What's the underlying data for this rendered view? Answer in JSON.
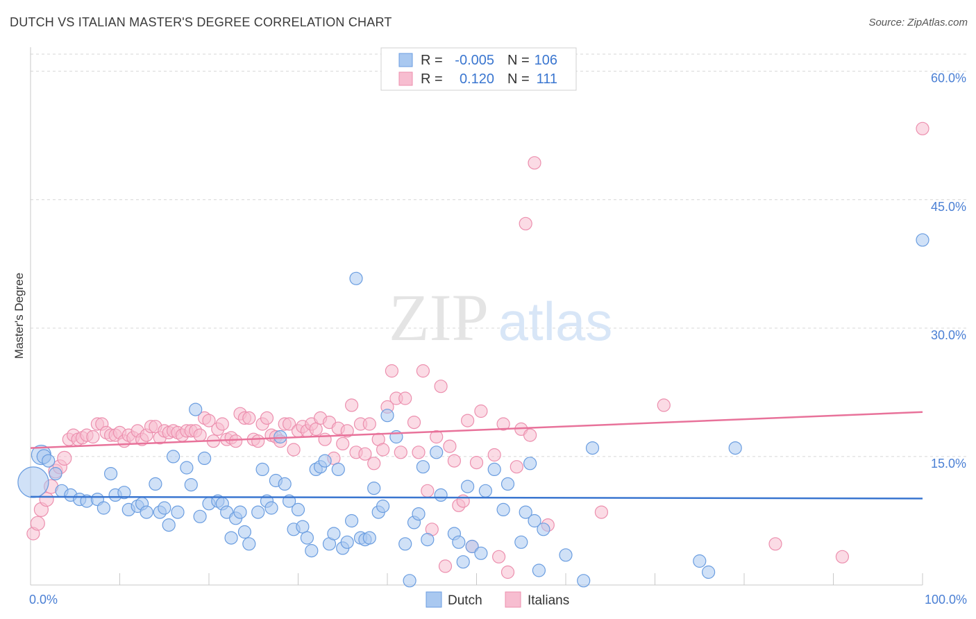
{
  "header": {
    "title": "DUTCH VS ITALIAN MASTER'S DEGREE CORRELATION CHART",
    "source": "Source: ZipAtlas.com"
  },
  "watermark": {
    "zip": "ZIP",
    "atlas": "atlas"
  },
  "colors": {
    "dutch_fill": "#a9c8f0",
    "dutch_stroke": "#6a9de0",
    "dutch_line": "#3a76d0",
    "italian_fill": "#f7bdd0",
    "italian_stroke": "#ec8fae",
    "italian_line": "#e8729a",
    "grid": "#d6d6d6",
    "axis_text": "#4a7fd4"
  },
  "legend": {
    "rows": [
      {
        "r_label": "R =",
        "r_value": "-0.005",
        "n_label": "N =",
        "n_value": "106"
      },
      {
        "r_label": "R =",
        "r_value": "0.120",
        "n_label": "N =",
        "n_value": "111"
      }
    ]
  },
  "chart_data": {
    "type": "scatter",
    "title": "DUTCH VS ITALIAN MASTER'S DEGREE CORRELATION CHART",
    "xlabel": "",
    "ylabel": "Master's Degree",
    "xlim": [
      0,
      100
    ],
    "ylim": [
      0,
      62
    ],
    "x_tick_labels": [
      {
        "value": 0,
        "label": "0.0%"
      },
      {
        "value": 100,
        "label": "100.0%"
      }
    ],
    "y_ticks": [
      {
        "value": 15,
        "label": "15.0%"
      },
      {
        "value": 30,
        "label": "30.0%"
      },
      {
        "value": 45,
        "label": "45.0%"
      },
      {
        "value": 60,
        "label": "60.0%"
      }
    ],
    "grid": true,
    "legend_position": "bottom",
    "series": [
      {
        "name": "Dutch",
        "trend": {
          "x": [
            0,
            100
          ],
          "y": [
            10.3,
            10.1
          ]
        },
        "points": [
          [
            0.3,
            12.0,
            22
          ],
          [
            1.2,
            15.2,
            14
          ],
          [
            1.5,
            15.0,
            10
          ],
          [
            2.0,
            14.5,
            9
          ],
          [
            2.8,
            13.0,
            9
          ],
          [
            3.5,
            11.0,
            9
          ],
          [
            4.5,
            10.5,
            9
          ],
          [
            5.5,
            10.0,
            9
          ],
          [
            6.3,
            9.8,
            9
          ],
          [
            7.5,
            10.0,
            9
          ],
          [
            8.2,
            9.0,
            9
          ],
          [
            9.0,
            13.0,
            9
          ],
          [
            9.5,
            10.5,
            9
          ],
          [
            10.5,
            10.8,
            9
          ],
          [
            11.0,
            8.8,
            9
          ],
          [
            12.0,
            9.2,
            9
          ],
          [
            12.5,
            9.5,
            9
          ],
          [
            13.0,
            8.5,
            9
          ],
          [
            14.0,
            11.8,
            9
          ],
          [
            14.5,
            8.5,
            9
          ],
          [
            15.0,
            9.0,
            9
          ],
          [
            15.5,
            7.0,
            9
          ],
          [
            16.0,
            15.0,
            9
          ],
          [
            16.5,
            8.5,
            9
          ],
          [
            17.5,
            13.7,
            9
          ],
          [
            18.0,
            11.7,
            9
          ],
          [
            18.5,
            20.5,
            9
          ],
          [
            19.0,
            8.0,
            9
          ],
          [
            19.5,
            14.8,
            9
          ],
          [
            20.0,
            9.5,
            9
          ],
          [
            21.0,
            9.8,
            9
          ],
          [
            21.5,
            9.5,
            9
          ],
          [
            22.0,
            8.5,
            9
          ],
          [
            22.5,
            5.5,
            9
          ],
          [
            23.0,
            7.8,
            9
          ],
          [
            23.5,
            8.5,
            9
          ],
          [
            24.0,
            6.2,
            9
          ],
          [
            24.5,
            4.8,
            9
          ],
          [
            25.5,
            8.5,
            9
          ],
          [
            26.0,
            13.5,
            9
          ],
          [
            26.5,
            9.8,
            9
          ],
          [
            27.0,
            9.0,
            9
          ],
          [
            27.5,
            12.2,
            9
          ],
          [
            28.0,
            17.3,
            9
          ],
          [
            28.5,
            11.8,
            9
          ],
          [
            29.0,
            9.8,
            9
          ],
          [
            29.5,
            6.5,
            9
          ],
          [
            30.0,
            8.8,
            9
          ],
          [
            30.5,
            6.8,
            9
          ],
          [
            31.0,
            5.5,
            9
          ],
          [
            31.5,
            4.0,
            9
          ],
          [
            32.0,
            13.5,
            9
          ],
          [
            32.5,
            13.8,
            9
          ],
          [
            33.0,
            14.5,
            9
          ],
          [
            33.5,
            4.8,
            9
          ],
          [
            34.0,
            6.0,
            9
          ],
          [
            34.5,
            13.5,
            9
          ],
          [
            35.0,
            4.3,
            9
          ],
          [
            35.5,
            5.0,
            9
          ],
          [
            36.0,
            7.5,
            9
          ],
          [
            36.5,
            35.8,
            9
          ],
          [
            37.0,
            5.5,
            9
          ],
          [
            37.5,
            5.3,
            9
          ],
          [
            38.0,
            5.5,
            9
          ],
          [
            38.5,
            11.3,
            9
          ],
          [
            39.0,
            8.5,
            9
          ],
          [
            39.5,
            9.2,
            9
          ],
          [
            40.0,
            19.8,
            9
          ],
          [
            41.0,
            17.3,
            9
          ],
          [
            42.0,
            4.8,
            9
          ],
          [
            42.5,
            0.5,
            9
          ],
          [
            43.0,
            7.3,
            9
          ],
          [
            43.5,
            8.3,
            9
          ],
          [
            44.0,
            13.8,
            9
          ],
          [
            44.5,
            5.3,
            9
          ],
          [
            45.5,
            15.5,
            9
          ],
          [
            46.0,
            10.5,
            9
          ],
          [
            47.5,
            6.0,
            9
          ],
          [
            48.0,
            5.0,
            9
          ],
          [
            48.5,
            2.7,
            9
          ],
          [
            49.0,
            11.5,
            9
          ],
          [
            49.5,
            4.5,
            9
          ],
          [
            50.5,
            3.7,
            9
          ],
          [
            51.0,
            11.0,
            9
          ],
          [
            52.0,
            13.5,
            9
          ],
          [
            53.0,
            8.8,
            9
          ],
          [
            53.5,
            11.8,
            9
          ],
          [
            55.0,
            5.0,
            9
          ],
          [
            55.5,
            8.5,
            9
          ],
          [
            56.0,
            14.2,
            9
          ],
          [
            56.5,
            7.5,
            9
          ],
          [
            57.0,
            1.7,
            9
          ],
          [
            57.5,
            6.5,
            9
          ],
          [
            60.0,
            3.5,
            9
          ],
          [
            62.0,
            0.5,
            9
          ],
          [
            63.0,
            16.0,
            9
          ],
          [
            75.0,
            2.8,
            9
          ],
          [
            76.0,
            1.5,
            9
          ],
          [
            79.0,
            16.0,
            9
          ],
          [
            100.0,
            40.3,
            9
          ]
        ]
      },
      {
        "name": "Italians",
        "trend": {
          "x": [
            0,
            100
          ],
          "y": [
            16.0,
            20.2
          ]
        },
        "points": [
          [
            0.3,
            6.0,
            9
          ],
          [
            0.8,
            7.2,
            10
          ],
          [
            1.2,
            8.8,
            10
          ],
          [
            1.8,
            10.0,
            10
          ],
          [
            2.3,
            11.5,
            10
          ],
          [
            2.8,
            13.3,
            10
          ],
          [
            3.3,
            13.8,
            10
          ],
          [
            3.8,
            14.8,
            10
          ],
          [
            4.3,
            17.0,
            9
          ],
          [
            4.8,
            17.5,
            9
          ],
          [
            5.3,
            17.0,
            9
          ],
          [
            5.8,
            17.2,
            9
          ],
          [
            6.3,
            17.5,
            9
          ],
          [
            7.0,
            17.3,
            9
          ],
          [
            7.5,
            18.8,
            9
          ],
          [
            8.0,
            18.8,
            9
          ],
          [
            8.5,
            17.8,
            9
          ],
          [
            9.0,
            17.5,
            9
          ],
          [
            9.5,
            17.5,
            9
          ],
          [
            10.0,
            17.8,
            9
          ],
          [
            10.5,
            16.8,
            9
          ],
          [
            11.0,
            17.5,
            9
          ],
          [
            11.5,
            17.2,
            9
          ],
          [
            12.0,
            18.0,
            9
          ],
          [
            12.5,
            17.0,
            9
          ],
          [
            13.0,
            17.5,
            9
          ],
          [
            13.5,
            18.5,
            9
          ],
          [
            14.0,
            18.5,
            9
          ],
          [
            14.5,
            17.2,
            9
          ],
          [
            15.0,
            18.0,
            9
          ],
          [
            15.5,
            17.8,
            9
          ],
          [
            16.0,
            18.0,
            9
          ],
          [
            16.5,
            17.8,
            9
          ],
          [
            17.0,
            17.5,
            9
          ],
          [
            17.5,
            18.0,
            9
          ],
          [
            18.0,
            18.0,
            9
          ],
          [
            18.5,
            18.0,
            9
          ],
          [
            19.0,
            17.5,
            9
          ],
          [
            19.5,
            19.5,
            9
          ],
          [
            20.0,
            19.2,
            9
          ],
          [
            20.5,
            16.8,
            9
          ],
          [
            21.0,
            18.2,
            9
          ],
          [
            21.5,
            18.8,
            9
          ],
          [
            22.0,
            17.0,
            9
          ],
          [
            22.5,
            17.2,
            9
          ],
          [
            23.0,
            16.8,
            9
          ],
          [
            23.5,
            20.0,
            9
          ],
          [
            24.0,
            19.5,
            9
          ],
          [
            24.5,
            19.5,
            9
          ],
          [
            25.0,
            17.0,
            9
          ],
          [
            25.5,
            16.8,
            9
          ],
          [
            26.0,
            18.8,
            9
          ],
          [
            26.5,
            19.5,
            9
          ],
          [
            27.0,
            17.5,
            9
          ],
          [
            27.5,
            17.3,
            9
          ],
          [
            28.0,
            16.8,
            9
          ],
          [
            28.5,
            18.8,
            9
          ],
          [
            29.0,
            18.8,
            9
          ],
          [
            29.5,
            15.8,
            9
          ],
          [
            30.0,
            18.0,
            9
          ],
          [
            30.5,
            18.5,
            9
          ],
          [
            31.0,
            18.0,
            9
          ],
          [
            31.5,
            18.8,
            9
          ],
          [
            32.0,
            18.2,
            9
          ],
          [
            32.5,
            19.5,
            9
          ],
          [
            33.0,
            17.0,
            9
          ],
          [
            33.5,
            19.0,
            9
          ],
          [
            34.0,
            14.8,
            9
          ],
          [
            34.5,
            18.3,
            9
          ],
          [
            35.0,
            16.5,
            9
          ],
          [
            35.5,
            18.0,
            9
          ],
          [
            36.0,
            21.0,
            9
          ],
          [
            36.5,
            15.5,
            9
          ],
          [
            37.0,
            18.8,
            9
          ],
          [
            37.5,
            15.3,
            9
          ],
          [
            38.0,
            18.8,
            9
          ],
          [
            38.5,
            14.2,
            9
          ],
          [
            39.0,
            17.0,
            9
          ],
          [
            39.5,
            15.8,
            9
          ],
          [
            40.0,
            20.8,
            9
          ],
          [
            40.5,
            25.0,
            9
          ],
          [
            41.0,
            21.8,
            9
          ],
          [
            41.5,
            15.5,
            9
          ],
          [
            42.0,
            21.8,
            9
          ],
          [
            43.0,
            19.0,
            9
          ],
          [
            43.5,
            15.5,
            9
          ],
          [
            44.0,
            25.0,
            9
          ],
          [
            44.5,
            11.0,
            9
          ],
          [
            45.0,
            6.5,
            9
          ],
          [
            45.5,
            17.3,
            9
          ],
          [
            46.0,
            23.2,
            9
          ],
          [
            46.5,
            2.2,
            9
          ],
          [
            47.0,
            16.2,
            9
          ],
          [
            47.5,
            14.5,
            9
          ],
          [
            48.0,
            9.3,
            9
          ],
          [
            48.5,
            9.8,
            9
          ],
          [
            49.0,
            19.2,
            9
          ],
          [
            49.5,
            4.5,
            9
          ],
          [
            50.0,
            14.3,
            9
          ],
          [
            50.5,
            20.3,
            9
          ],
          [
            52.0,
            15.2,
            9
          ],
          [
            52.5,
            3.3,
            9
          ],
          [
            53.0,
            18.8,
            9
          ],
          [
            53.5,
            1.5,
            9
          ],
          [
            54.5,
            13.8,
            9
          ],
          [
            55.0,
            18.2,
            9
          ],
          [
            55.5,
            42.2,
            9
          ],
          [
            56.0,
            17.5,
            9
          ],
          [
            56.5,
            49.3,
            9
          ],
          [
            58.0,
            7.0,
            9
          ],
          [
            64.0,
            8.5,
            9
          ],
          [
            71.0,
            21.0,
            9
          ],
          [
            83.5,
            4.8,
            9
          ],
          [
            91.0,
            3.3,
            9
          ],
          [
            100.0,
            53.3,
            9
          ]
        ]
      }
    ]
  }
}
